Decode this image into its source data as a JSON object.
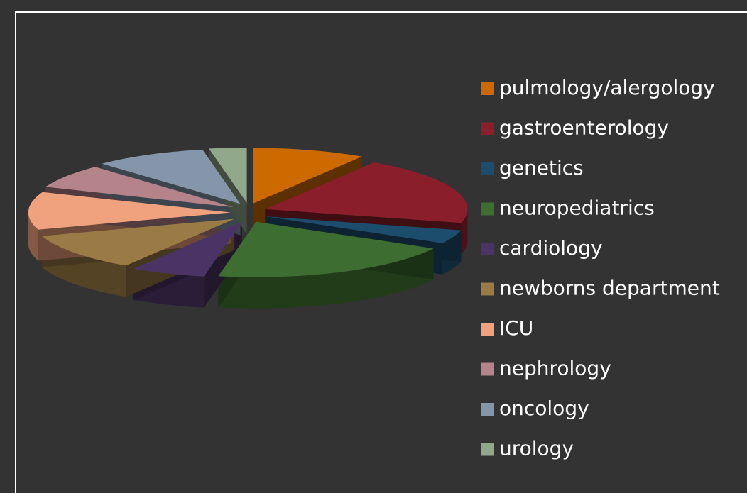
{
  "chart_data": {
    "type": "pie3d",
    "categories": [
      "pulmology/alergology",
      "gastroenterology",
      "genetics",
      "neuropediatrics",
      "cardiology",
      "newborns department",
      "ICU",
      "nephrology",
      "oncology",
      "urology"
    ],
    "values": [
      9,
      20,
      4,
      20,
      6,
      11,
      11,
      7,
      9,
      3
    ],
    "colors": [
      "#cc6a00",
      "#8a1f2b",
      "#1d4d6d",
      "#3d6d30",
      "#4b3465",
      "#9a7a45",
      "#f0a27e",
      "#b5838a",
      "#8596aa",
      "#91a98a"
    ],
    "legend": "right"
  }
}
